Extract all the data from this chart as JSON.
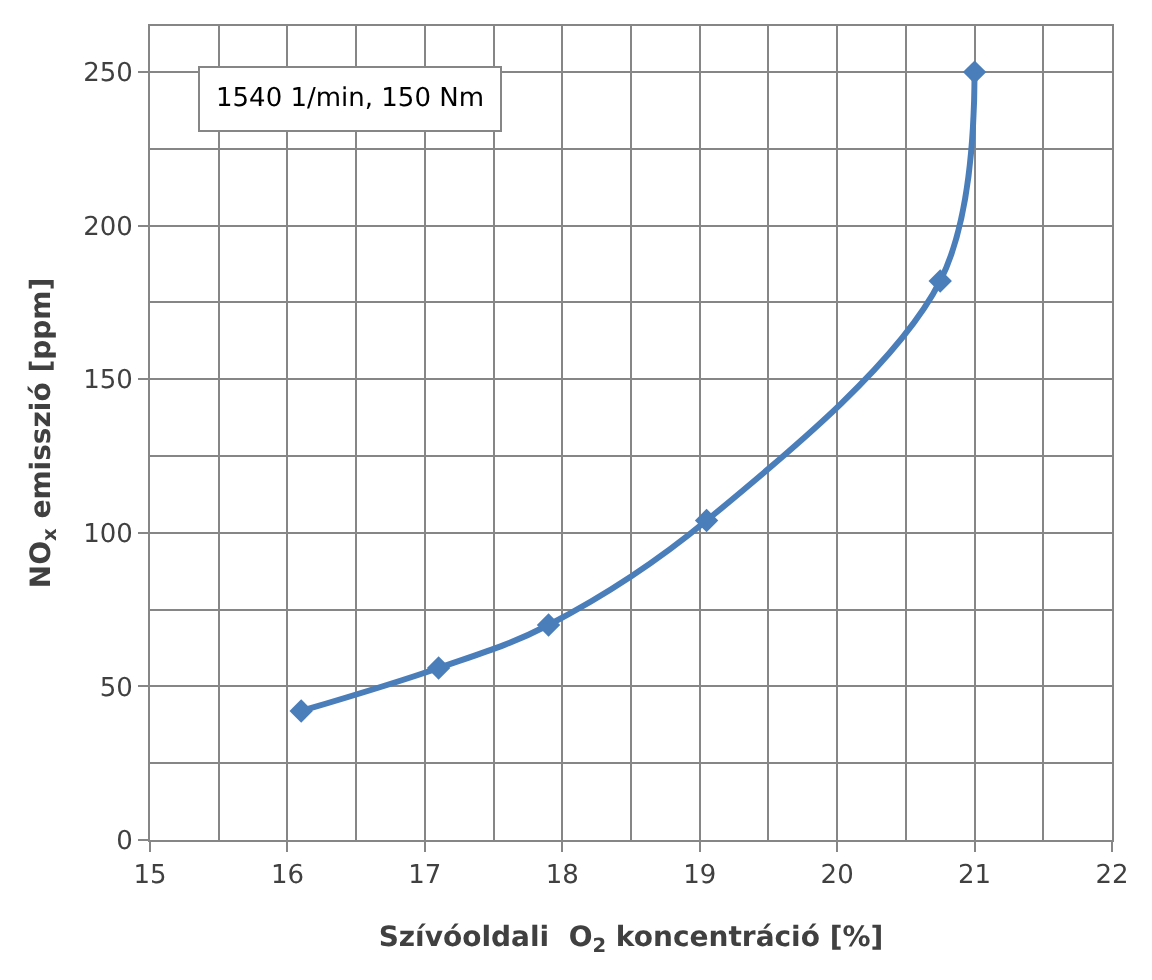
{
  "chart_data": {
    "type": "line",
    "xlabel": "Szívóoldali  O$_{2}$ koncentráció [%]",
    "ylabel": "NO$_{x}$ emisszió [ppm]",
    "annotations": [
      "1540 1/min, 150 Nm"
    ],
    "x": [
      16.1,
      17.1,
      17.9,
      19.05,
      20.75,
      21.0
    ],
    "series": [
      {
        "color": "#4a7ebb",
        "values": [
          42,
          56,
          70,
          104,
          182,
          250
        ]
      }
    ],
    "xlim": [
      15,
      22
    ],
    "xticks": [
      15,
      16,
      17,
      18,
      19,
      20,
      21,
      22
    ],
    "ylim": [
      0,
      265
    ],
    "yticks": [
      0,
      50,
      100,
      150,
      200,
      250
    ],
    "grid": true,
    "marker": "diamond",
    "line_style": "solid"
  }
}
